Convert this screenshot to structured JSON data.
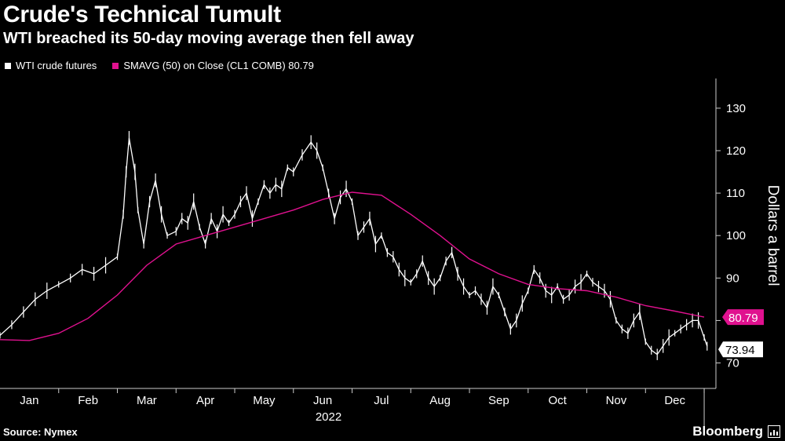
{
  "header": {
    "title": "Crude's Technical Tumult",
    "subtitle": "WTI breached its 50-day moving average then fell away"
  },
  "legend": {
    "series1": "WTI crude futures",
    "series2": "SMAVG (50)  on Close (CL1 COMB) 80.79"
  },
  "footer": {
    "source": "Source: Nymex",
    "brand": "Bloomberg"
  },
  "colors": {
    "price": "#ffffff",
    "sma": "#e0118f",
    "background": "#000000"
  },
  "chart_data": {
    "type": "line",
    "title": "Crude's Technical Tumult",
    "subtitle": "WTI breached its 50-day moving average then fell away",
    "ylabel": "Dollars a barrel",
    "xlabel": "2022",
    "ylim": [
      64,
      137
    ],
    "yticks": [
      70,
      80,
      90,
      100,
      110,
      120,
      130
    ],
    "x_range": [
      0,
      12.2
    ],
    "x_ticks": [
      {
        "label": "Jan",
        "x": 0.5
      },
      {
        "label": "Feb",
        "x": 1.5
      },
      {
        "label": "Mar",
        "x": 2.5
      },
      {
        "label": "Apr",
        "x": 3.5
      },
      {
        "label": "May",
        "x": 4.5
      },
      {
        "label": "Jun",
        "x": 5.5
      },
      {
        "label": "Jul",
        "x": 6.5
      },
      {
        "label": "Aug",
        "x": 7.5
      },
      {
        "label": "Sep",
        "x": 8.5
      },
      {
        "label": "Oct",
        "x": 9.5
      },
      {
        "label": "Nov",
        "x": 10.5
      },
      {
        "label": "Dec",
        "x": 11.5
      }
    ],
    "month_boundaries": [
      1,
      2,
      3,
      4,
      5,
      6,
      7,
      8,
      9,
      10,
      11,
      12
    ],
    "year_marker": 12.0,
    "series": [
      {
        "name": "WTI crude futures",
        "style": "bars",
        "points": [
          [
            0.0,
            76.5
          ],
          [
            0.2,
            79
          ],
          [
            0.4,
            82
          ],
          [
            0.6,
            85
          ],
          [
            0.8,
            87
          ],
          [
            1.0,
            88.5
          ],
          [
            1.2,
            90
          ],
          [
            1.4,
            92
          ],
          [
            1.6,
            91
          ],
          [
            1.8,
            93
          ],
          [
            2.0,
            95
          ],
          [
            2.1,
            105
          ],
          [
            2.15,
            115
          ],
          [
            2.2,
            123
          ],
          [
            2.3,
            115
          ],
          [
            2.35,
            106
          ],
          [
            2.45,
            98
          ],
          [
            2.55,
            108
          ],
          [
            2.65,
            113
          ],
          [
            2.75,
            105
          ],
          [
            2.85,
            100
          ],
          [
            3.0,
            101
          ],
          [
            3.1,
            104
          ],
          [
            3.2,
            103
          ],
          [
            3.3,
            108
          ],
          [
            3.4,
            102
          ],
          [
            3.5,
            98
          ],
          [
            3.6,
            104
          ],
          [
            3.7,
            101
          ],
          [
            3.8,
            105
          ],
          [
            3.9,
            103
          ],
          [
            4.0,
            105
          ],
          [
            4.1,
            108
          ],
          [
            4.2,
            110
          ],
          [
            4.3,
            104
          ],
          [
            4.4,
            108
          ],
          [
            4.5,
            112
          ],
          [
            4.6,
            110
          ],
          [
            4.7,
            112
          ],
          [
            4.8,
            111
          ],
          [
            4.9,
            116
          ],
          [
            5.0,
            115
          ],
          [
            5.15,
            119
          ],
          [
            5.3,
            122
          ],
          [
            5.4,
            120
          ],
          [
            5.5,
            116
          ],
          [
            5.6,
            110
          ],
          [
            5.7,
            104
          ],
          [
            5.8,
            109
          ],
          [
            5.9,
            111
          ],
          [
            6.0,
            108
          ],
          [
            6.1,
            100
          ],
          [
            6.2,
            102
          ],
          [
            6.3,
            104
          ],
          [
            6.4,
            98
          ],
          [
            6.5,
            100
          ],
          [
            6.6,
            96
          ],
          [
            6.7,
            95
          ],
          [
            6.8,
            92
          ],
          [
            6.9,
            90
          ],
          [
            7.0,
            89
          ],
          [
            7.1,
            91
          ],
          [
            7.2,
            94
          ],
          [
            7.3,
            90
          ],
          [
            7.4,
            88
          ],
          [
            7.5,
            90
          ],
          [
            7.6,
            94
          ],
          [
            7.7,
            96
          ],
          [
            7.8,
            91
          ],
          [
            7.9,
            88
          ],
          [
            8.0,
            86
          ],
          [
            8.1,
            87
          ],
          [
            8.2,
            85
          ],
          [
            8.3,
            83
          ],
          [
            8.4,
            88
          ],
          [
            8.5,
            86
          ],
          [
            8.6,
            82
          ],
          [
            8.7,
            78
          ],
          [
            8.8,
            80
          ],
          [
            8.9,
            84
          ],
          [
            9.0,
            87
          ],
          [
            9.1,
            92
          ],
          [
            9.2,
            90
          ],
          [
            9.3,
            87
          ],
          [
            9.4,
            86
          ],
          [
            9.5,
            88
          ],
          [
            9.6,
            85
          ],
          [
            9.7,
            86
          ],
          [
            9.8,
            88
          ],
          [
            9.9,
            89
          ],
          [
            10.0,
            91
          ],
          [
            10.1,
            89
          ],
          [
            10.2,
            88
          ],
          [
            10.3,
            87
          ],
          [
            10.4,
            85
          ],
          [
            10.5,
            80
          ],
          [
            10.6,
            78
          ],
          [
            10.7,
            77
          ],
          [
            10.8,
            80
          ],
          [
            10.9,
            82
          ],
          [
            11.0,
            75
          ],
          [
            11.1,
            73
          ],
          [
            11.2,
            72
          ],
          [
            11.3,
            74
          ],
          [
            11.4,
            76
          ],
          [
            11.5,
            77
          ],
          [
            11.6,
            78
          ],
          [
            11.7,
            79
          ],
          [
            11.8,
            80
          ],
          [
            11.9,
            80
          ],
          [
            12.0,
            76
          ],
          [
            12.05,
            73.94
          ]
        ]
      },
      {
        "name": "SMAVG (50) on Close (CL1 COMB)",
        "style": "line",
        "points": [
          [
            0.0,
            75.5
          ],
          [
            0.5,
            75.3
          ],
          [
            1.0,
            77
          ],
          [
            1.5,
            80.5
          ],
          [
            2.0,
            86
          ],
          [
            2.5,
            93
          ],
          [
            3.0,
            98
          ],
          [
            3.5,
            100
          ],
          [
            4.0,
            102
          ],
          [
            4.5,
            104
          ],
          [
            5.0,
            106
          ],
          [
            5.5,
            108.5
          ],
          [
            6.0,
            110.2
          ],
          [
            6.5,
            109.5
          ],
          [
            7.0,
            105
          ],
          [
            7.5,
            100
          ],
          [
            8.0,
            94.5
          ],
          [
            8.5,
            91
          ],
          [
            9.0,
            88.5
          ],
          [
            9.5,
            87.5
          ],
          [
            10.0,
            87
          ],
          [
            10.5,
            85.5
          ],
          [
            11.0,
            83.5
          ],
          [
            11.5,
            82.2
          ],
          [
            12.0,
            80.79
          ]
        ]
      }
    ],
    "last_values": [
      {
        "series": "SMAVG (50)",
        "label": "80.79",
        "value": 80.79
      },
      {
        "series": "WTI crude futures",
        "label": "73.94",
        "value": 73.94
      }
    ]
  }
}
